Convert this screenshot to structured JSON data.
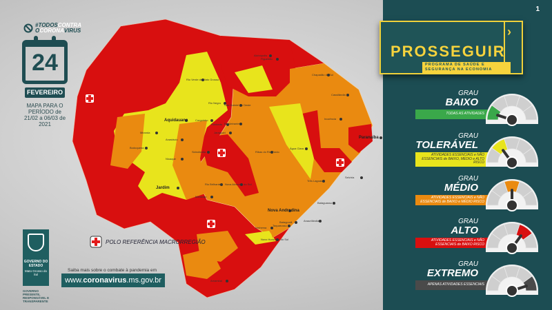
{
  "campaign": {
    "prefix": "#",
    "line1a": "TODOS",
    "line1b": "CONTRA",
    "line2a": "O",
    "line2b": "CORONA",
    "line2c": "VIRUS"
  },
  "calendar": {
    "day": "24",
    "month": "FEVEREIRO",
    "period": "MAPA PARA O PERÍODO de 21/02 a 06/03 de 2021"
  },
  "legend": {
    "polo_label": "POLO REFERÊNCIA MACRORREGIÃO",
    "polo_icon": "medical-cross-icon"
  },
  "footer": {
    "saiba": "Saiba mais sobre o combate à pandemia em",
    "url_prefix": "www.",
    "url_bold": "coronavirus",
    "url_suffix": ".ms.gov.br"
  },
  "government": {
    "line1": "GOVERNO DO ESTADO",
    "line2": "Mato Grosso do Sul",
    "tagline": "GOVERNO PRESENTE, RESPONSÁVEL E TRANSPARENTE"
  },
  "page_number": "1",
  "program": {
    "title": "PROSSEGUIR",
    "subtitle": "PROGRAMA DE SAÚDE E SEGURANÇA NA ECONOMIA"
  },
  "colors": {
    "baixo": "#3aa84a",
    "toleravel": "#e8e41c",
    "medio": "#ea8a10",
    "alto": "#d80f0f",
    "extremo": "#4a4a4a",
    "panel": "#1c4d53",
    "accent": "#f6d33d"
  },
  "levels": [
    {
      "grau": "GRAU",
      "name": "BAIXO",
      "desc": "TODAS AS ATIVIDADES",
      "color": "#3aa84a",
      "segment": 0
    },
    {
      "grau": "GRAU",
      "name": "TOLERÁVEL",
      "desc": "ATIVIDADES ESSENCIAIS e NÃO ESSENCIAIS de BAIXO, MÉDIO e ALTO RISCO",
      "color": "#e8e41c",
      "segment": 1
    },
    {
      "grau": "GRAU",
      "name": "MÉDIO",
      "desc": "ATIVIDADES ESSENCIAIS e NÃO ESSENCIAIS de BAIXO e MÉDIO RISCO",
      "color": "#ea8a10",
      "segment": 2
    },
    {
      "grau": "GRAU",
      "name": "ALTO",
      "desc": "ATIVIDADES ESSENCIAIS e NÃO ESSENCIAIS de BAIXO RISCO",
      "color": "#d80f0f",
      "segment": 3
    },
    {
      "grau": "GRAU",
      "name": "EXTREMO",
      "desc": "APENAS ATIVIDADES ESSENCIAIS",
      "color": "#4a4a4a",
      "segment": 4
    }
  ],
  "cities": [
    {
      "name": "Aquidauana",
      "big": true
    },
    {
      "name": "Jardim",
      "big": true
    },
    {
      "name": "Paranaíba",
      "big": true
    },
    {
      "name": "Nova Andradina",
      "big": true
    },
    {
      "name": "Rio Verde de Mato Grosso"
    },
    {
      "name": "Rio Negro"
    },
    {
      "name": "Corguinho"
    },
    {
      "name": "Rochedo"
    },
    {
      "name": "Bandeirantes"
    },
    {
      "name": "Jaraguari"
    },
    {
      "name": "São Gabriel do Oeste"
    },
    {
      "name": "Figueirão"
    },
    {
      "name": "Alcinópolis"
    },
    {
      "name": "Chapadão do Sul"
    },
    {
      "name": "Cassilândia"
    },
    {
      "name": "Inocência"
    },
    {
      "name": "Água Clara"
    },
    {
      "name": "Ribas do Rio Pardo"
    },
    {
      "name": "Selvíria"
    },
    {
      "name": "Três Lagoas"
    },
    {
      "name": "Miranda"
    },
    {
      "name": "Bodoquena"
    },
    {
      "name": "Anastácio"
    },
    {
      "name": "Nioaque"
    },
    {
      "name": "Maracaju"
    },
    {
      "name": "Sidrolândia"
    },
    {
      "name": "Rio Brilhante"
    },
    {
      "name": "Nova Alvorada do Sul"
    },
    {
      "name": "Amambai"
    },
    {
      "name": "Bataguassu"
    },
    {
      "name": "Anaurilândia"
    },
    {
      "name": "Taquarussu"
    },
    {
      "name": "Batayporã"
    },
    {
      "name": "Ivinhema"
    },
    {
      "name": "Novo Horizonte do Sul"
    }
  ]
}
